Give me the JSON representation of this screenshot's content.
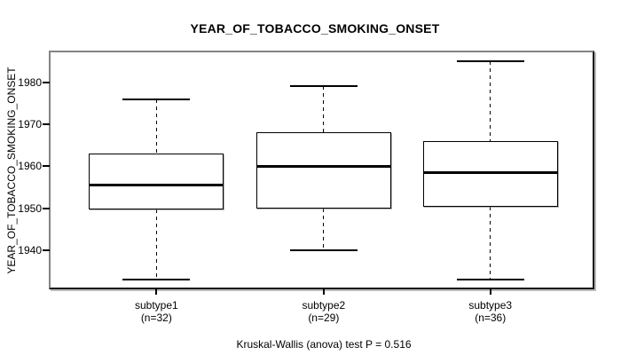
{
  "colors": {
    "background": "#ffffff",
    "text": "#000000",
    "frame_light": "#848484",
    "frame_dark": "#1a1a1a",
    "box_stroke": "#000000",
    "box_fill": "#ffffff",
    "median": "#000000"
  },
  "chart_data": {
    "type": "boxplot",
    "title": "YEAR_OF_TOBACCO_SMOKING_ONSET",
    "ylabel": "YEAR_OF_TOBACCO_SMOKING_ONSET",
    "xlabel": "",
    "annotation": "Kruskal-Wallis (anova) test P = 0.516",
    "p_value": 0.516,
    "ylim": [
      1930.9,
      1987.1
    ],
    "yticks": [
      1940,
      1950,
      1960,
      1970,
      1980
    ],
    "grid": false,
    "legend": false,
    "groups": [
      {
        "label": "subtype1",
        "n_label": "(n=32)",
        "n": 32,
        "min": 1933,
        "q1": 1949.75,
        "median": 1955.5,
        "q3": 1963,
        "max": 1976
      },
      {
        "label": "subtype2",
        "n_label": "(n=29)",
        "n": 29,
        "min": 1940,
        "q1": 1950,
        "median": 1960,
        "q3": 1968,
        "max": 1979
      },
      {
        "label": "subtype3",
        "n_label": "(n=36)",
        "n": 36,
        "min": 1933,
        "q1": 1950.25,
        "median": 1958.5,
        "q3": 1966,
        "max": 1985
      }
    ]
  }
}
